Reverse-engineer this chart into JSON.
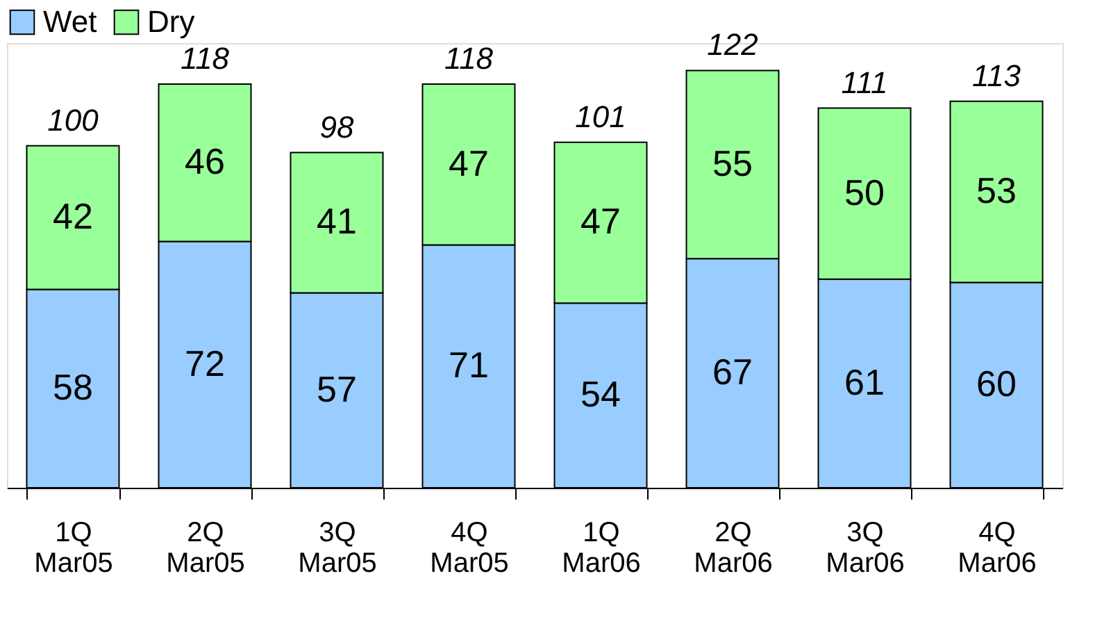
{
  "chart_data": {
    "type": "bar",
    "stacked": true,
    "categories": [
      "1Q Mar05",
      "2Q Mar05",
      "3Q Mar05",
      "4Q Mar05",
      "1Q Mar06",
      "2Q Mar06",
      "3Q Mar06",
      "4Q Mar06"
    ],
    "series": [
      {
        "name": "Wet",
        "color": "#99ccff",
        "values": [
          58,
          72,
          57,
          71,
          54,
          67,
          61,
          60
        ]
      },
      {
        "name": "Dry",
        "color": "#99ff99",
        "values": [
          42,
          46,
          41,
          47,
          47,
          55,
          50,
          53
        ]
      }
    ],
    "data_labels": true,
    "totals": [
      "100",
      "118",
      "98",
      "118",
      "101",
      "122",
      "111",
      "113"
    ],
    "legend": "top left",
    "grid": false,
    "tick_labels": "x"
  }
}
